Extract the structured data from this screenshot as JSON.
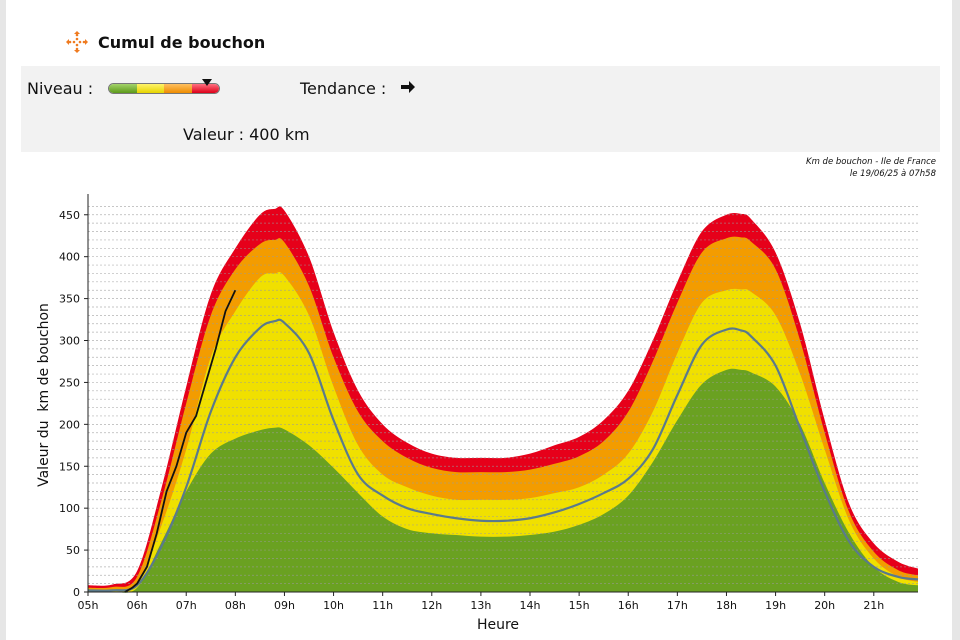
{
  "header": {
    "title": "Cumul de bouchon",
    "icon": "traffic-arrows-icon"
  },
  "panel": {
    "niveau_label": "Niveau :",
    "gauge": {
      "level": 0.88,
      "segments": [
        "#6aa121",
        "#f0e000",
        "#f39c00",
        "#e6001a"
      ]
    },
    "tendance_label": "Tendance :",
    "tendance_icon": "arrow-right-icon",
    "valeur_label": "Valeur : 400 km"
  },
  "stamp": {
    "line1": "Km de bouchon - Ile de France",
    "line2": "le 19/06/25 à 07h58"
  },
  "chart_data": {
    "type": "area",
    "xlabel": "Heure",
    "ylabel": "Valeur du  km de bouchon",
    "x_ticks": [
      "05h",
      "06h",
      "07h",
      "08h",
      "09h",
      "10h",
      "11h",
      "12h",
      "13h",
      "14h",
      "15h",
      "16h",
      "17h",
      "18h",
      "19h",
      "20h",
      "21h"
    ],
    "y_ticks": [
      0,
      50,
      100,
      150,
      200,
      250,
      300,
      350,
      400,
      450
    ],
    "ylim": [
      0,
      470
    ],
    "xlim": [
      5,
      21.9
    ],
    "grid": "horizontal dashed",
    "x": [
      5.0,
      5.5,
      6.0,
      6.5,
      7.0,
      7.5,
      8.0,
      8.5,
      8.8,
      9.0,
      9.5,
      10.0,
      10.5,
      11.0,
      11.5,
      12.0,
      12.5,
      13.0,
      13.5,
      14.0,
      14.5,
      15.0,
      15.5,
      16.0,
      16.5,
      17.0,
      17.5,
      18.0,
      18.3,
      18.5,
      19.0,
      19.5,
      20.0,
      20.5,
      21.0,
      21.5,
      21.9
    ],
    "series": [
      {
        "color": "#6aa121",
        "values": [
          0,
          0,
          5,
          60,
          120,
          165,
          183,
          193,
          196,
          194,
          175,
          148,
          118,
          90,
          75,
          70,
          68,
          66,
          66,
          68,
          72,
          80,
          93,
          115,
          155,
          205,
          248,
          265,
          265,
          262,
          245,
          200,
          130,
          70,
          30,
          12,
          8
        ]
      },
      {
        "color": "#f0e000",
        "values": [
          2,
          3,
          10,
          80,
          170,
          280,
          335,
          375,
          380,
          377,
          330,
          245,
          175,
          140,
          125,
          115,
          110,
          110,
          110,
          112,
          118,
          125,
          140,
          165,
          215,
          285,
          345,
          360,
          361,
          358,
          330,
          260,
          170,
          85,
          40,
          18,
          12
        ]
      },
      {
        "color": "#f39c00",
        "values": [
          5,
          6,
          18,
          110,
          225,
          330,
          385,
          415,
          420,
          417,
          365,
          280,
          215,
          180,
          160,
          148,
          143,
          143,
          143,
          146,
          153,
          162,
          180,
          215,
          275,
          345,
          405,
          422,
          423,
          418,
          385,
          300,
          190,
          95,
          48,
          26,
          20
        ]
      },
      {
        "color": "#e6001a",
        "values": [
          8,
          9,
          25,
          125,
          245,
          355,
          410,
          450,
          457,
          455,
          400,
          310,
          240,
          200,
          178,
          165,
          160,
          160,
          160,
          165,
          175,
          185,
          205,
          240,
          300,
          370,
          430,
          450,
          451,
          445,
          405,
          320,
          205,
          105,
          58,
          36,
          28
        ]
      },
      {
        "type": "line",
        "color": "#5a7a8c",
        "values": [
          2,
          2,
          8,
          55,
          125,
          215,
          280,
          315,
          323,
          321,
          285,
          205,
          140,
          115,
          100,
          93,
          88,
          85,
          85,
          88,
          95,
          105,
          118,
          135,
          170,
          235,
          295,
          313,
          312,
          305,
          270,
          195,
          120,
          60,
          30,
          18,
          15
        ]
      },
      {
        "type": "line",
        "color": "#111111",
        "x": [
          5.75,
          5.9,
          6.0,
          6.2,
          6.4,
          6.6,
          6.8,
          7.0,
          7.2,
          7.4,
          7.6,
          7.8,
          8.0
        ],
        "values": [
          0,
          5,
          10,
          30,
          70,
          120,
          150,
          190,
          210,
          250,
          290,
          335,
          360
        ]
      }
    ]
  }
}
